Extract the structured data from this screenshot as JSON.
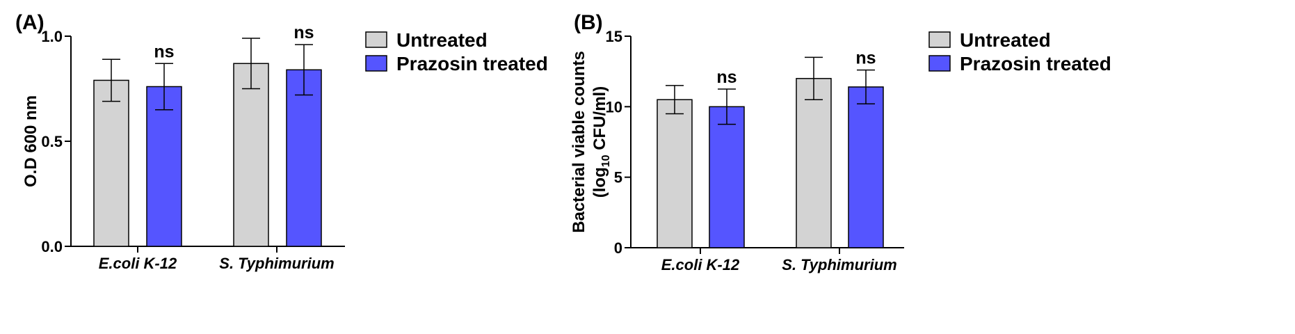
{
  "chart_data": [
    {
      "type": "bar",
      "panel_label": "(A)",
      "categories": [
        "E.coli K-12",
        "S. Typhimurium"
      ],
      "series": [
        {
          "name": "Untreated",
          "color": "#d3d3d3",
          "values": [
            0.79,
            0.87
          ],
          "errors": [
            0.1,
            0.12
          ]
        },
        {
          "name": "Prazosin treated",
          "color": "#5555ff",
          "values": [
            0.76,
            0.84
          ],
          "errors": [
            0.11,
            0.12
          ]
        }
      ],
      "annotations": [
        {
          "category": 0,
          "series": 1,
          "text": "ns"
        },
        {
          "category": 1,
          "series": 1,
          "text": "ns"
        }
      ],
      "ylabel": "O.D 600 nm",
      "ylabel_sub": "",
      "ylim": [
        0,
        1.0
      ],
      "yticks": [
        0.0,
        0.5,
        1.0
      ],
      "ytick_labels": [
        "0.0",
        "0.5",
        "1.0"
      ],
      "legend_position": "right"
    },
    {
      "type": "bar",
      "panel_label": "(B)",
      "categories": [
        "E.coli K-12",
        "S. Typhimurium"
      ],
      "series": [
        {
          "name": "Untreated",
          "color": "#d3d3d3",
          "values": [
            10.5,
            12.0
          ],
          "errors": [
            1.0,
            1.5
          ]
        },
        {
          "name": "Prazosin treated",
          "color": "#5555ff",
          "values": [
            10.0,
            11.4
          ],
          "errors": [
            1.25,
            1.2
          ]
        }
      ],
      "annotations": [
        {
          "category": 0,
          "series": 1,
          "text": "ns"
        },
        {
          "category": 1,
          "series": 1,
          "text": "ns"
        }
      ],
      "ylabel": "Bacterial viable counts",
      "ylabel_sub": "(log10 CFU/ml)",
      "ylim": [
        0,
        15
      ],
      "yticks": [
        0,
        5,
        10,
        15
      ],
      "ytick_labels": [
        "0",
        "5",
        "10",
        "15"
      ],
      "legend_position": "right"
    }
  ]
}
